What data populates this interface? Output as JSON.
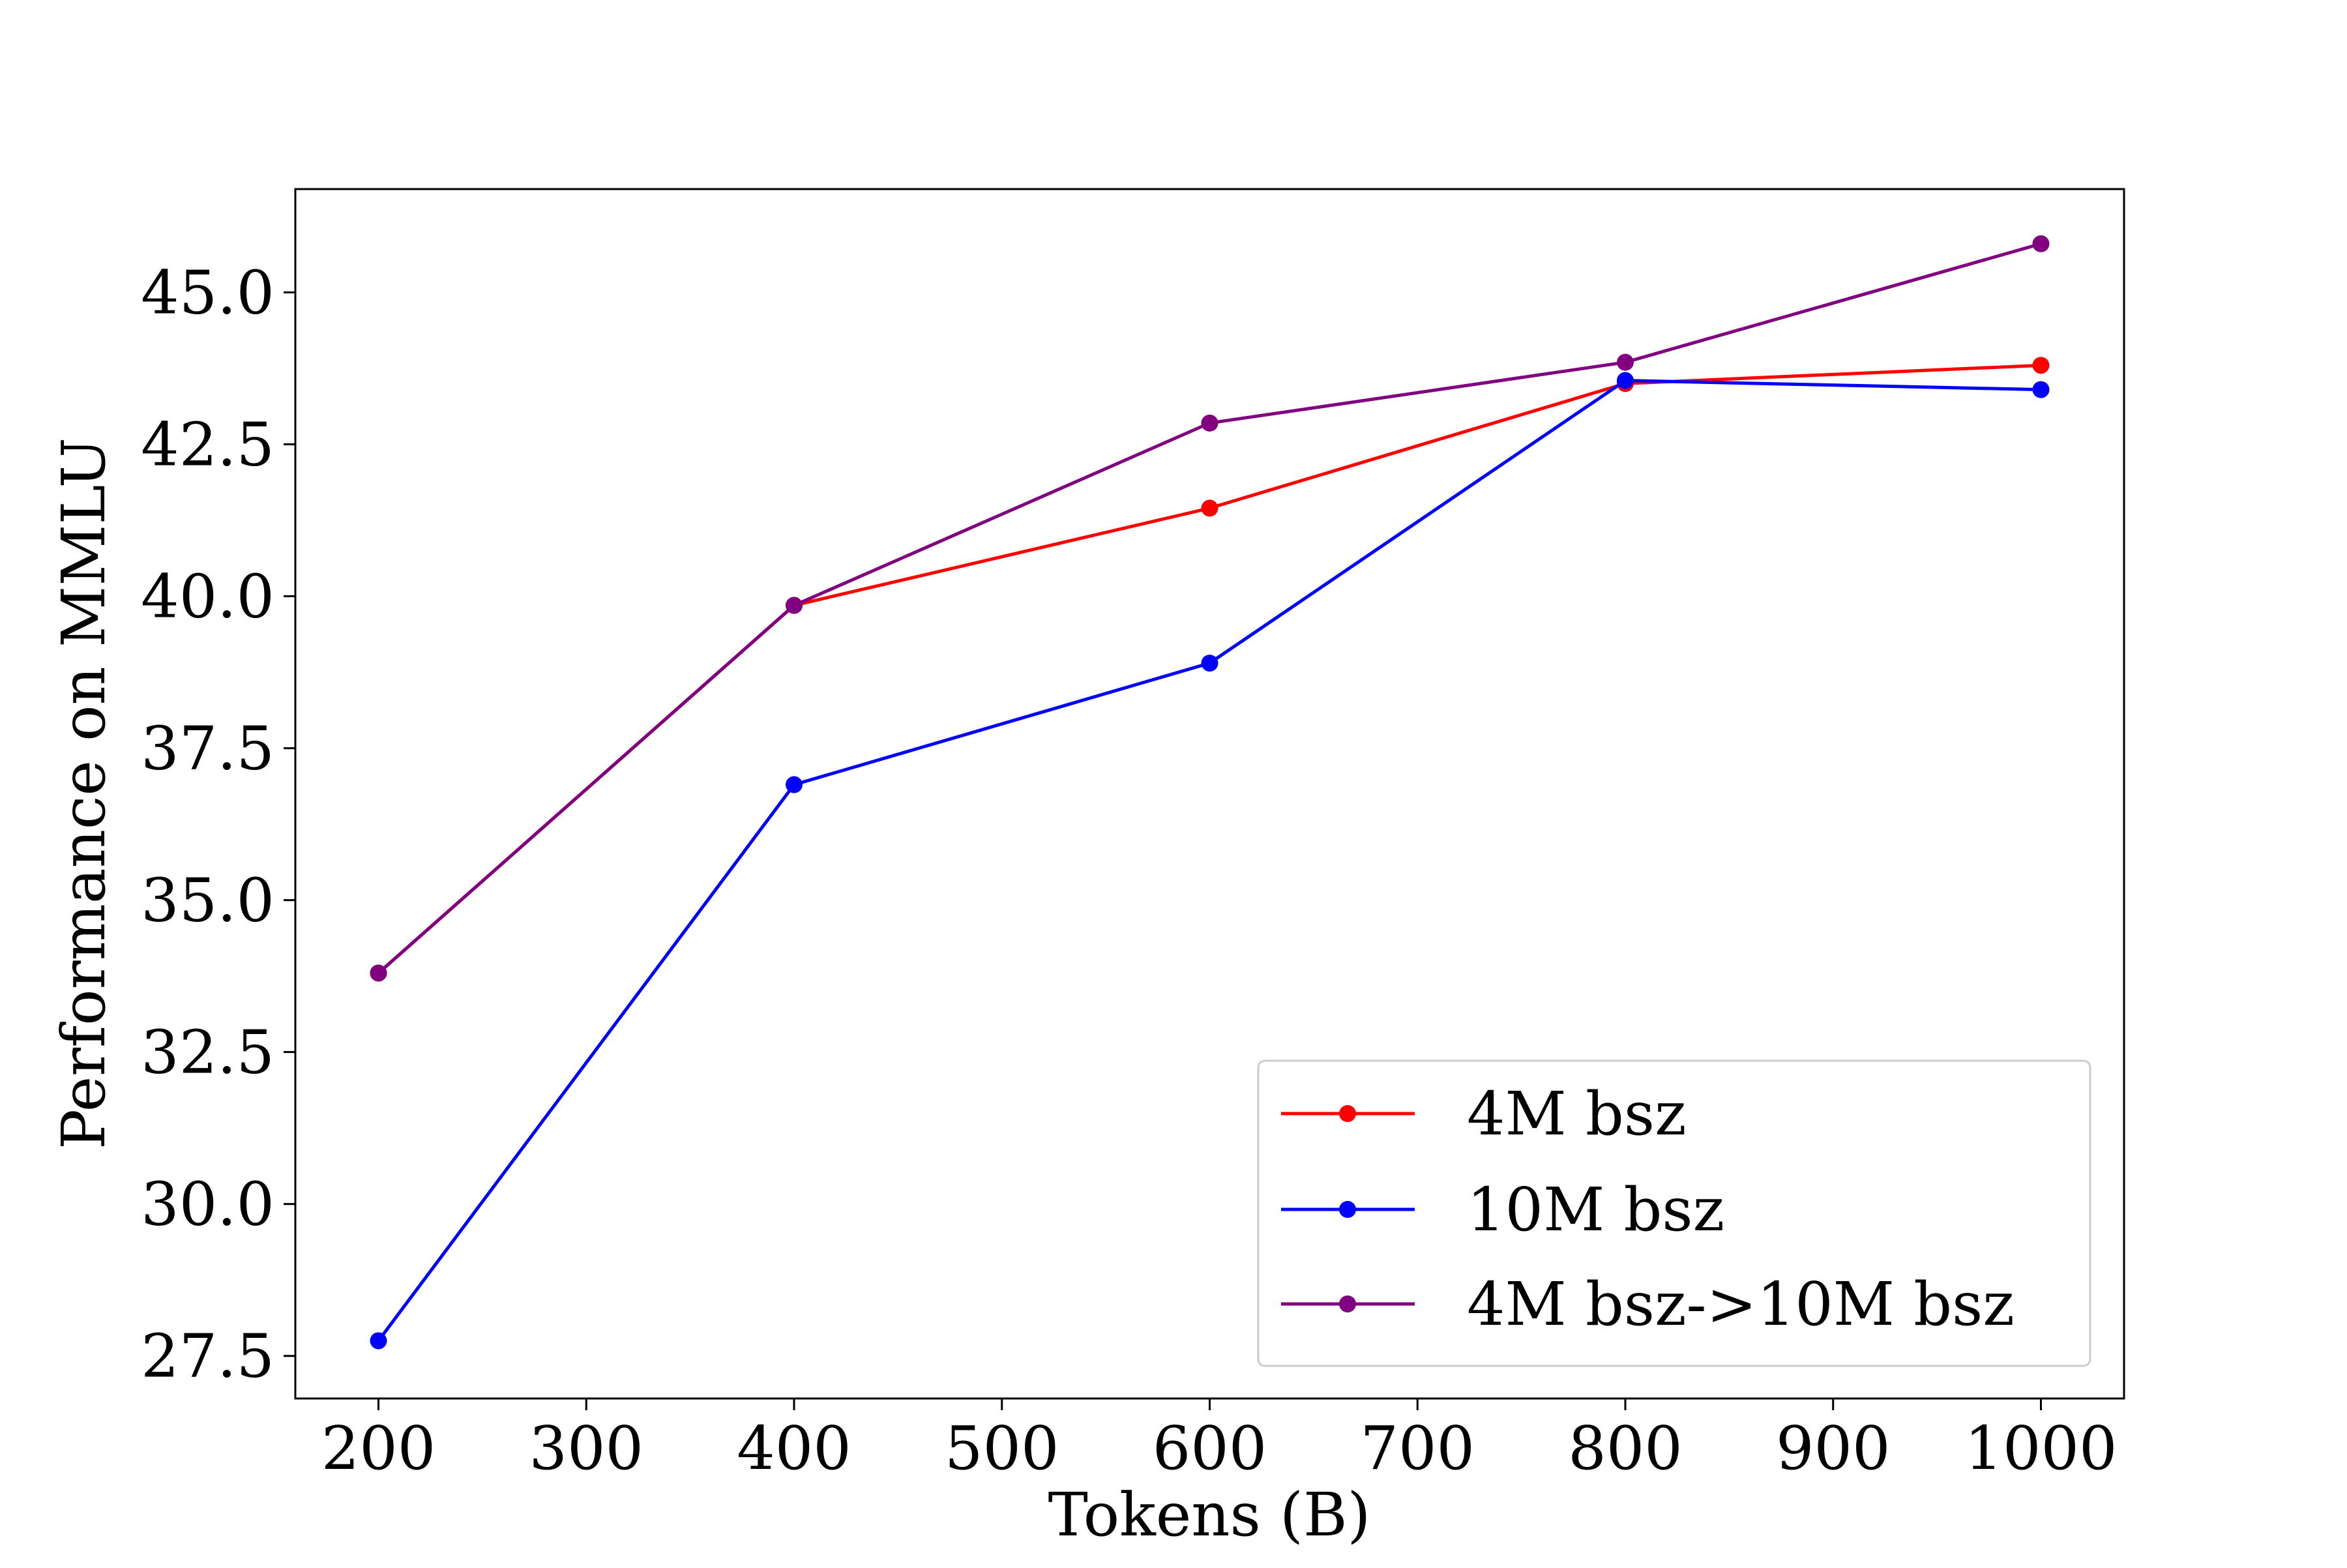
{
  "chart_data": {
    "type": "line",
    "title": "",
    "xlabel": "Tokens (B)",
    "ylabel": "Performance on MMLU",
    "xlim": [
      160,
      1040
    ],
    "ylim": [
      26.8,
      46.7
    ],
    "xticks": [
      200,
      300,
      400,
      500,
      600,
      700,
      800,
      900,
      1000
    ],
    "xtick_labels": [
      "200",
      "300",
      "400",
      "500",
      "600",
      "700",
      "800",
      "900",
      "1000"
    ],
    "yticks": [
      27.5,
      30.0,
      32.5,
      35.0,
      37.5,
      40.0,
      42.5,
      45.0
    ],
    "ytick_labels": [
      "27.5",
      "30.0",
      "32.5",
      "35.0",
      "37.5",
      "40.0",
      "42.5",
      "45.0"
    ],
    "grid": false,
    "legend_position": "lower-right",
    "x": [
      200,
      400,
      600,
      800,
      1000
    ],
    "series": [
      {
        "name": "4M bsz",
        "color": "#ff0000",
        "values": [
          33.8,
          39.85,
          41.45,
          43.5,
          43.8
        ]
      },
      {
        "name": "10M bsz",
        "color": "#0000ff",
        "values": [
          27.75,
          36.9,
          38.9,
          43.55,
          43.4
        ]
      },
      {
        "name": "4M bsz->10M bsz",
        "color": "#800080",
        "values": [
          33.8,
          39.85,
          42.85,
          43.85,
          45.8
        ]
      }
    ]
  }
}
